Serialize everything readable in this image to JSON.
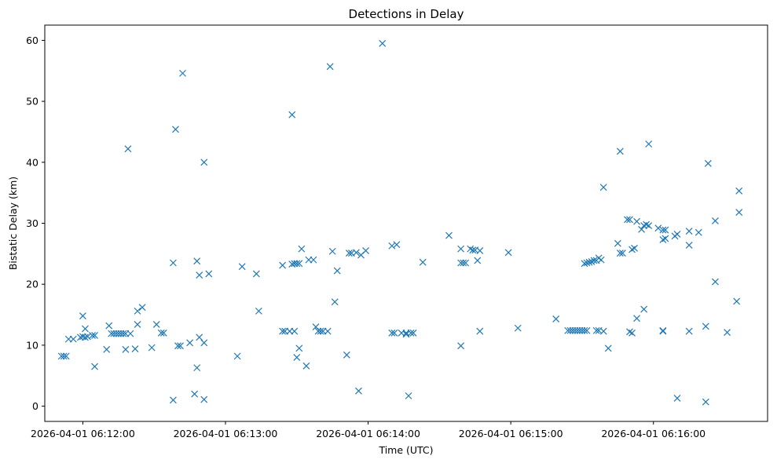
{
  "chart_data": {
    "type": "scatter",
    "title": "Detections in Delay",
    "xlabel": "Time (UTC)",
    "ylabel": "Bistatic Delay (km)",
    "x_ticks": [
      "2026-04-01 06:12:00",
      "2026-04-01 06:13:00",
      "2026-04-01 06:14:00",
      "2026-04-01 06:15:00",
      "2026-04-01 06:16:00"
    ],
    "y_ticks": [
      "0",
      "10",
      "20",
      "30",
      "40",
      "50",
      "60"
    ],
    "xlim": [
      "2026-04-01 06:11:44",
      "2026-04-01 06:16:48"
    ],
    "ylim": [
      -2.5,
      62.5
    ],
    "grid": false,
    "marker": "x",
    "color": "#1f77b4",
    "points": [
      [
        "06:11:51",
        8.2
      ],
      [
        "06:11:52",
        8.2
      ],
      [
        "06:11:53",
        8.2
      ],
      [
        "06:11:54",
        11.0
      ],
      [
        "06:11:56",
        11.0
      ],
      [
        "06:11:59",
        11.3
      ],
      [
        "06:11:60",
        11.4
      ],
      [
        "06:12:00",
        14.8
      ],
      [
        "06:12:01",
        11.3
      ],
      [
        "06:12:01",
        12.7
      ],
      [
        "06:12:02",
        11.4
      ],
      [
        "06:12:04",
        11.6
      ],
      [
        "06:12:05",
        11.6
      ],
      [
        "06:12:05",
        6.5
      ],
      [
        "06:12:10",
        9.3
      ],
      [
        "06:12:11",
        13.2
      ],
      [
        "06:12:12",
        11.9
      ],
      [
        "06:12:13",
        11.9
      ],
      [
        "06:12:14",
        11.9
      ],
      [
        "06:12:15",
        11.9
      ],
      [
        "06:12:16",
        11.9
      ],
      [
        "06:12:17",
        11.9
      ],
      [
        "06:12:18",
        9.3
      ],
      [
        "06:12:18",
        11.9
      ],
      [
        "06:12:19",
        42.2
      ],
      [
        "06:12:20",
        11.9
      ],
      [
        "06:12:22",
        9.4
      ],
      [
        "06:12:23",
        15.6
      ],
      [
        "06:12:23",
        13.4
      ],
      [
        "06:12:25",
        16.2
      ],
      [
        "06:12:29",
        9.6
      ],
      [
        "06:12:31",
        13.4
      ],
      [
        "06:12:33",
        12.0
      ],
      [
        "06:12:34",
        12.0
      ],
      [
        "06:12:38",
        23.5
      ],
      [
        "06:12:38",
        1.0
      ],
      [
        "06:12:39",
        45.4
      ],
      [
        "06:12:40",
        9.9
      ],
      [
        "06:12:41",
        9.9
      ],
      [
        "06:12:42",
        54.6
      ],
      [
        "06:12:45",
        10.4
      ],
      [
        "06:12:47",
        2.0
      ],
      [
        "06:12:48",
        23.8
      ],
      [
        "06:12:48",
        6.3
      ],
      [
        "06:12:49",
        11.3
      ],
      [
        "06:12:49",
        21.5
      ],
      [
        "06:12:51",
        40.0
      ],
      [
        "06:12:51",
        10.4
      ],
      [
        "06:12:51",
        1.1
      ],
      [
        "06:12:53",
        21.7
      ],
      [
        "06:13:05",
        8.2
      ],
      [
        "06:13:07",
        22.9
      ],
      [
        "06:13:13",
        21.7
      ],
      [
        "06:13:14",
        15.6
      ],
      [
        "06:13:24",
        23.1
      ],
      [
        "06:13:24",
        12.3
      ],
      [
        "06:13:25",
        12.3
      ],
      [
        "06:13:27",
        12.3
      ],
      [
        "06:13:28",
        47.8
      ],
      [
        "06:13:28",
        23.3
      ],
      [
        "06:13:29",
        12.3
      ],
      [
        "06:13:29",
        23.4
      ],
      [
        "06:13:30",
        8.0
      ],
      [
        "06:13:30",
        23.4
      ],
      [
        "06:13:31",
        23.4
      ],
      [
        "06:13:31",
        9.5
      ],
      [
        "06:13:32",
        25.8
      ],
      [
        "06:13:34",
        6.6
      ],
      [
        "06:13:35",
        24.0
      ],
      [
        "06:13:37",
        24.0
      ],
      [
        "06:13:38",
        13.0
      ],
      [
        "06:13:39",
        12.3
      ],
      [
        "06:13:40",
        12.3
      ],
      [
        "06:13:41",
        12.3
      ],
      [
        "06:13:43",
        12.3
      ],
      [
        "06:13:44",
        55.7
      ],
      [
        "06:13:45",
        25.4
      ],
      [
        "06:13:46",
        17.1
      ],
      [
        "06:13:47",
        22.2
      ],
      [
        "06:13:51",
        8.4
      ],
      [
        "06:13:52",
        25.1
      ],
      [
        "06:13:53",
        25.1
      ],
      [
        "06:13:55",
        25.2
      ],
      [
        "06:13:56",
        2.5
      ],
      [
        "06:13:57",
        24.8
      ],
      [
        "06:13:59",
        25.5
      ],
      [
        "06:14:06",
        59.5
      ],
      [
        "06:14:10",
        26.3
      ],
      [
        "06:14:10",
        12.0
      ],
      [
        "06:14:11",
        12.0
      ],
      [
        "06:14:12",
        26.5
      ],
      [
        "06:14:14",
        12.0
      ],
      [
        "06:14:16",
        11.8
      ],
      [
        "06:14:16",
        12.0
      ],
      [
        "06:14:17",
        1.7
      ],
      [
        "06:14:18",
        12.0
      ],
      [
        "06:14:19",
        12.0
      ],
      [
        "06:14:23",
        23.6
      ],
      [
        "06:14:34",
        28.0
      ],
      [
        "06:14:39",
        23.5
      ],
      [
        "06:14:39",
        9.9
      ],
      [
        "06:14:39",
        25.8
      ],
      [
        "06:14:40",
        23.5
      ],
      [
        "06:14:41",
        23.5
      ],
      [
        "06:14:43",
        25.8
      ],
      [
        "06:14:44",
        25.6
      ],
      [
        "06:14:45",
        25.6
      ],
      [
        "06:14:46",
        23.9
      ],
      [
        "06:14:47",
        12.3
      ],
      [
        "06:14:47",
        25.5
      ],
      [
        "06:14:59",
        25.2
      ],
      [
        "06:15:03",
        12.8
      ],
      [
        "06:15:19",
        14.3
      ],
      [
        "06:15:24",
        12.4
      ],
      [
        "06:15:25",
        12.4
      ],
      [
        "06:15:26",
        12.4
      ],
      [
        "06:15:27",
        12.4
      ],
      [
        "06:15:28",
        12.4
      ],
      [
        "06:15:29",
        12.4
      ],
      [
        "06:15:30",
        12.4
      ],
      [
        "06:15:31",
        12.4
      ],
      [
        "06:15:31",
        23.4
      ],
      [
        "06:15:32",
        23.5
      ],
      [
        "06:15:32",
        12.4
      ],
      [
        "06:15:33",
        23.6
      ],
      [
        "06:15:34",
        23.7
      ],
      [
        "06:15:35",
        23.9
      ],
      [
        "06:15:36",
        23.9
      ],
      [
        "06:15:36",
        12.4
      ],
      [
        "06:15:37",
        24.3
      ],
      [
        "06:15:37",
        12.4
      ],
      [
        "06:15:38",
        24.0
      ],
      [
        "06:15:39",
        35.9
      ],
      [
        "06:15:39",
        12.3
      ],
      [
        "06:15:41",
        9.5
      ],
      [
        "06:15:45",
        26.7
      ],
      [
        "06:15:46",
        41.8
      ],
      [
        "06:15:46",
        25.1
      ],
      [
        "06:15:47",
        25.1
      ],
      [
        "06:15:49",
        30.6
      ],
      [
        "06:15:50",
        30.6
      ],
      [
        "06:15:50",
        12.2
      ],
      [
        "06:15:51",
        25.7
      ],
      [
        "06:15:51",
        12.0
      ],
      [
        "06:15:52",
        25.9
      ],
      [
        "06:15:53",
        30.3
      ],
      [
        "06:15:53",
        14.4
      ],
      [
        "06:15:55",
        29.0
      ],
      [
        "06:15:56",
        15.9
      ],
      [
        "06:15:56",
        29.6
      ],
      [
        "06:15:57",
        29.8
      ],
      [
        "06:15:58",
        43.0
      ],
      [
        "06:15:58",
        29.6
      ],
      [
        "06:16:02",
        29.2
      ],
      [
        "06:16:04",
        12.3
      ],
      [
        "06:16:04",
        12.4
      ],
      [
        "06:16:04",
        27.3
      ],
      [
        "06:16:04",
        28.9
      ],
      [
        "06:16:05",
        27.5
      ],
      [
        "06:16:05",
        28.9
      ],
      [
        "06:16:09",
        27.9
      ],
      [
        "06:16:10",
        28.2
      ],
      [
        "06:16:10",
        1.3
      ],
      [
        "06:16:15",
        26.4
      ],
      [
        "06:16:15",
        28.7
      ],
      [
        "06:16:15",
        12.3
      ],
      [
        "06:16:19",
        28.5
      ],
      [
        "06:16:22",
        13.1
      ],
      [
        "06:16:22",
        0.7
      ],
      [
        "06:16:23",
        39.8
      ],
      [
        "06:16:26",
        30.4
      ],
      [
        "06:16:26",
        20.4
      ],
      [
        "06:16:31",
        12.1
      ],
      [
        "06:16:35",
        17.2
      ],
      [
        "06:16:36",
        35.3
      ],
      [
        "06:16:36",
        31.8
      ]
    ]
  }
}
